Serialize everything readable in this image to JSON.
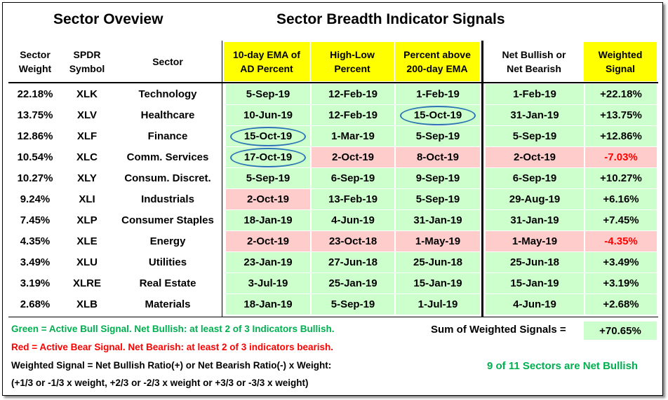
{
  "titles": {
    "left": "Sector Oveview",
    "right": "Sector Breadth Indicator Signals"
  },
  "headers": {
    "weight": "Sector\nWeight",
    "symbol": "SPDR\nSymbol",
    "sector": "Sector",
    "ema": "10-day EMA of\nAD Percent",
    "highlow": "High-Low\nPercent",
    "pct200": "Percent above\n200-day EMA",
    "net": "Net Bullish or\nNet Bearish",
    "signal": "Weighted\nSignal"
  },
  "colors": {
    "bull": "#ccffcc",
    "bear": "#ffcccc",
    "header_highlight": "#ffff00",
    "circle": "#2e75b6",
    "green_text": "#00b050",
    "red_text": "#ff0000"
  },
  "rows": [
    {
      "weight": "22.18%",
      "symbol": "XLK",
      "sector": "Technology",
      "ema": "5-Sep-19",
      "ema_s": "g",
      "hl": "12-Feb-19",
      "hl_s": "g",
      "pct": "1-Feb-19",
      "pct_s": "g",
      "net": "1-Feb-19",
      "net_s": "g",
      "signal": "+22.18%",
      "signal_s": "g",
      "circled": ""
    },
    {
      "weight": "13.75%",
      "symbol": "XLV",
      "sector": "Healthcare",
      "ema": "10-Jun-19",
      "ema_s": "g",
      "hl": "12-Feb-19",
      "hl_s": "g",
      "pct": "15-Oct-19",
      "pct_s": "g",
      "net": "31-Jan-19",
      "net_s": "g",
      "signal": "+13.75%",
      "signal_s": "g",
      "circled": "pct"
    },
    {
      "weight": "12.86%",
      "symbol": "XLF",
      "sector": "Finance",
      "ema": "15-Oct-19",
      "ema_s": "g",
      "hl": "1-Mar-19",
      "hl_s": "g",
      "pct": "5-Sep-19",
      "pct_s": "g",
      "net": "5-Sep-19",
      "net_s": "g",
      "signal": "+12.86%",
      "signal_s": "g",
      "circled": "ema"
    },
    {
      "weight": "10.54%",
      "symbol": "XLC",
      "sector": "Comm. Services",
      "ema": "17-Oct-19",
      "ema_s": "g",
      "hl": "2-Oct-19",
      "hl_s": "r",
      "pct": "8-Oct-19",
      "pct_s": "r",
      "net": "2-Oct-19",
      "net_s": "r",
      "signal": "-7.03%",
      "signal_s": "r",
      "circled": "ema"
    },
    {
      "weight": "10.27%",
      "symbol": "XLY",
      "sector": "Consum. Discret.",
      "ema": "5-Sep-19",
      "ema_s": "g",
      "hl": "6-Sep-19",
      "hl_s": "g",
      "pct": "9-Sep-19",
      "pct_s": "g",
      "net": "6-Sep-19",
      "net_s": "g",
      "signal": "+10.27%",
      "signal_s": "g",
      "circled": ""
    },
    {
      "weight": "9.24%",
      "symbol": "XLI",
      "sector": "Industrials",
      "ema": "2-Oct-19",
      "ema_s": "r",
      "hl": "13-Feb-19",
      "hl_s": "g",
      "pct": "5-Sep-19",
      "pct_s": "g",
      "net": "29-Aug-19",
      "net_s": "g",
      "signal": "+6.16%",
      "signal_s": "g",
      "circled": ""
    },
    {
      "weight": "7.45%",
      "symbol": "XLP",
      "sector": "Consumer Staples",
      "ema": "18-Jan-19",
      "ema_s": "g",
      "hl": "4-Jun-19",
      "hl_s": "g",
      "pct": "31-Jan-19",
      "pct_s": "g",
      "net": "31-Jan-19",
      "net_s": "g",
      "signal": "+7.45%",
      "signal_s": "g",
      "circled": ""
    },
    {
      "weight": "4.35%",
      "symbol": "XLE",
      "sector": "Energy",
      "ema": "2-Oct-19",
      "ema_s": "r",
      "hl": "23-Oct-18",
      "hl_s": "r",
      "pct": "1-May-19",
      "pct_s": "r",
      "net": "1-May-19",
      "net_s": "r",
      "signal": "-4.35%",
      "signal_s": "r",
      "circled": ""
    },
    {
      "weight": "3.49%",
      "symbol": "XLU",
      "sector": "Utilities",
      "ema": "23-Jan-19",
      "ema_s": "g",
      "hl": "27-Jun-18",
      "hl_s": "g",
      "pct": "25-Jun-18",
      "pct_s": "g",
      "net": "25-Jun-18",
      "net_s": "g",
      "signal": "+3.49%",
      "signal_s": "g",
      "circled": ""
    },
    {
      "weight": "3.19%",
      "symbol": "XLRE",
      "sector": "Real Estate",
      "ema": "3-Jul-19",
      "ema_s": "g",
      "hl": "25-Jan-19",
      "hl_s": "g",
      "pct": "15-Jan-19",
      "pct_s": "g",
      "net": "15-Jan-19",
      "net_s": "g",
      "signal": "+3.19%",
      "signal_s": "g",
      "circled": ""
    },
    {
      "weight": "2.68%",
      "symbol": "XLB",
      "sector": "Materials",
      "ema": "18-Jan-19",
      "ema_s": "g",
      "hl": "5-Sep-19",
      "hl_s": "g",
      "pct": "1-Jul-19",
      "pct_s": "g",
      "net": "4-Jun-19",
      "net_s": "g",
      "signal": "+2.68%",
      "signal_s": "g",
      "circled": ""
    }
  ],
  "notes": {
    "green": "Green = Active Bull Signal. Net Bullish: at least 2 of 3 Indicators Bullish.",
    "red": "Red = Active Bear Signal. Net Bearish: at least 2 of 3 indicators bearish.",
    "formula1": "Weighted Signal = Net Bullish Ratio(+) or Net Bearish Ratio(-) x Weight:",
    "formula2": "(+1/3 or -1/3 x weight, +2/3 or -2/3 x weight or +3/3 or -3/3 x weight)",
    "sum_label": "Sum of Weighted Signals =",
    "sum_value": "+70.65%",
    "summary": "9 of 11 Sectors are Net Bullish"
  }
}
